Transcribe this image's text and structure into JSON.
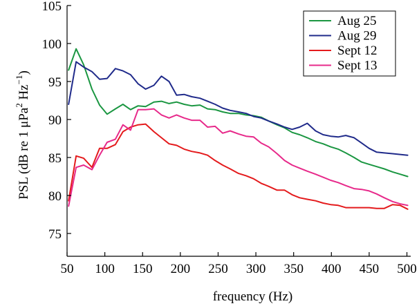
{
  "chart_data": {
    "type": "line",
    "xlabel": "frequency (Hz)",
    "ylabel_parts": {
      "prefix": "PSL (dB re 1 μPa",
      "sup1": "2",
      "mid": " Hz",
      "sup2": "−1",
      "suffix": ")"
    },
    "xlim": [
      50,
      505
    ],
    "ylim": [
      72,
      105
    ],
    "x_ticks": [
      50,
      100,
      150,
      200,
      250,
      300,
      350,
      400,
      450,
      500
    ],
    "y_ticks": [
      75,
      80,
      85,
      90,
      95,
      100,
      105
    ],
    "grid": false,
    "legend_position": "top-right",
    "x": [
      52,
      62,
      72,
      83,
      93,
      103,
      114,
      124,
      134,
      144,
      154,
      165,
      175,
      185,
      195,
      205,
      215,
      226,
      236,
      246,
      256,
      266,
      277,
      287,
      297,
      307,
      317,
      328,
      338,
      348,
      358,
      368,
      379,
      389,
      399,
      409,
      419,
      430,
      440,
      450,
      460,
      470,
      481,
      491,
      501
    ],
    "series": [
      {
        "name": "Aug 25",
        "color": "#1a9641",
        "values": [
          96.5,
          99.3,
          97.2,
          94.0,
          91.9,
          90.7,
          91.4,
          92.0,
          91.3,
          91.8,
          91.7,
          92.3,
          92.4,
          92.1,
          92.3,
          92.0,
          91.8,
          91.9,
          91.4,
          91.3,
          91.0,
          90.8,
          90.8,
          90.6,
          90.5,
          90.3,
          89.8,
          89.3,
          88.9,
          88.3,
          88.0,
          87.6,
          87.1,
          86.8,
          86.4,
          86.1,
          85.6,
          85.0,
          84.4,
          84.1,
          83.8,
          83.5,
          83.1,
          82.8,
          82.5
        ]
      },
      {
        "name": "Aug 29",
        "color": "#1f2a8a",
        "values": [
          92.0,
          97.6,
          96.9,
          96.3,
          95.3,
          95.4,
          96.7,
          96.4,
          95.9,
          94.7,
          94.0,
          94.5,
          95.7,
          95.0,
          93.2,
          93.3,
          93.0,
          92.8,
          92.4,
          92.0,
          91.5,
          91.2,
          91.0,
          90.8,
          90.4,
          90.2,
          89.8,
          89.4,
          89.0,
          88.7,
          89.0,
          89.5,
          88.5,
          88.0,
          87.8,
          87.7,
          87.9,
          87.6,
          86.9,
          86.2,
          85.7,
          85.6,
          85.5,
          85.4,
          85.3
        ]
      },
      {
        "name": "Sept 12",
        "color": "#e41a1c",
        "values": [
          79.3,
          85.2,
          84.9,
          83.7,
          86.2,
          86.2,
          86.7,
          88.4,
          89.0,
          89.3,
          89.4,
          88.4,
          87.6,
          86.8,
          86.6,
          86.1,
          85.8,
          85.6,
          85.3,
          84.6,
          84.0,
          83.5,
          82.9,
          82.6,
          82.2,
          81.6,
          81.2,
          80.7,
          80.7,
          80.1,
          79.7,
          79.5,
          79.3,
          79.0,
          78.8,
          78.7,
          78.4,
          78.4,
          78.4,
          78.4,
          78.3,
          78.3,
          78.8,
          78.7,
          78.2
        ]
      },
      {
        "name": "Sept 13",
        "color": "#e7298a",
        "values": [
          78.6,
          83.7,
          84.0,
          83.4,
          85.3,
          87.0,
          87.4,
          89.3,
          88.6,
          91.3,
          91.3,
          91.4,
          90.6,
          90.2,
          90.6,
          90.2,
          89.9,
          89.9,
          89.0,
          89.1,
          88.2,
          88.5,
          88.1,
          87.8,
          87.7,
          86.9,
          86.4,
          85.5,
          84.6,
          84.0,
          83.6,
          83.2,
          82.8,
          82.4,
          82.0,
          81.7,
          81.3,
          80.9,
          80.8,
          80.6,
          80.2,
          79.7,
          79.2,
          78.9,
          78.7
        ]
      }
    ]
  }
}
